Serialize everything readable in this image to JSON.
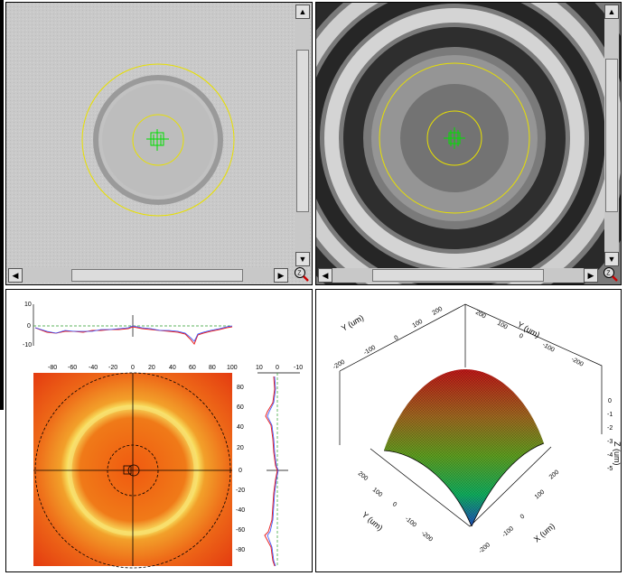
{
  "views": {
    "tl": {
      "name": "intensity-image"
    },
    "tr": {
      "name": "fringe-image"
    }
  },
  "scroll": {
    "up": "▲",
    "down": "▼",
    "left": "◀",
    "right": "▶"
  },
  "zoom_icon": {
    "label": "Z"
  },
  "profile_top": {
    "yticks": [
      "10",
      "0",
      "-10"
    ]
  },
  "profile_right": {
    "xticks": [
      "10",
      "0",
      "-10"
    ]
  },
  "map2d": {
    "xticks": [
      "-80",
      "-60",
      "-40",
      "-20",
      "0",
      "20",
      "40",
      "60",
      "80",
      "100"
    ],
    "yticks": [
      "80",
      "60",
      "40",
      "20",
      "0",
      "-20",
      "-40",
      "-60",
      "-80"
    ]
  },
  "plot3d": {
    "y_top_label": "Y (um)",
    "y_top_ticks": [
      "200",
      "100",
      "0",
      "-100",
      "-200"
    ],
    "x_top_ticks": [
      "200",
      "100",
      "0",
      "-100",
      "-200"
    ],
    "x_top_label": "Y (um)",
    "z_label": "Z (um)",
    "z_ticks": [
      "0",
      "-1",
      "-2",
      "-3",
      "-4",
      "-5"
    ],
    "y_bottom_label": "Y (um)",
    "y_bottom_ticks": [
      "200",
      "100",
      "0",
      "-100",
      "-200"
    ],
    "x_bottom_label": "X (um)",
    "x_bottom_ticks": [
      "200",
      "100",
      "0",
      "-100",
      "-200"
    ]
  },
  "colors": {
    "yellow": "#e8e000",
    "green": "#00e000",
    "red": "#e82020",
    "blue": "#3050ff"
  }
}
